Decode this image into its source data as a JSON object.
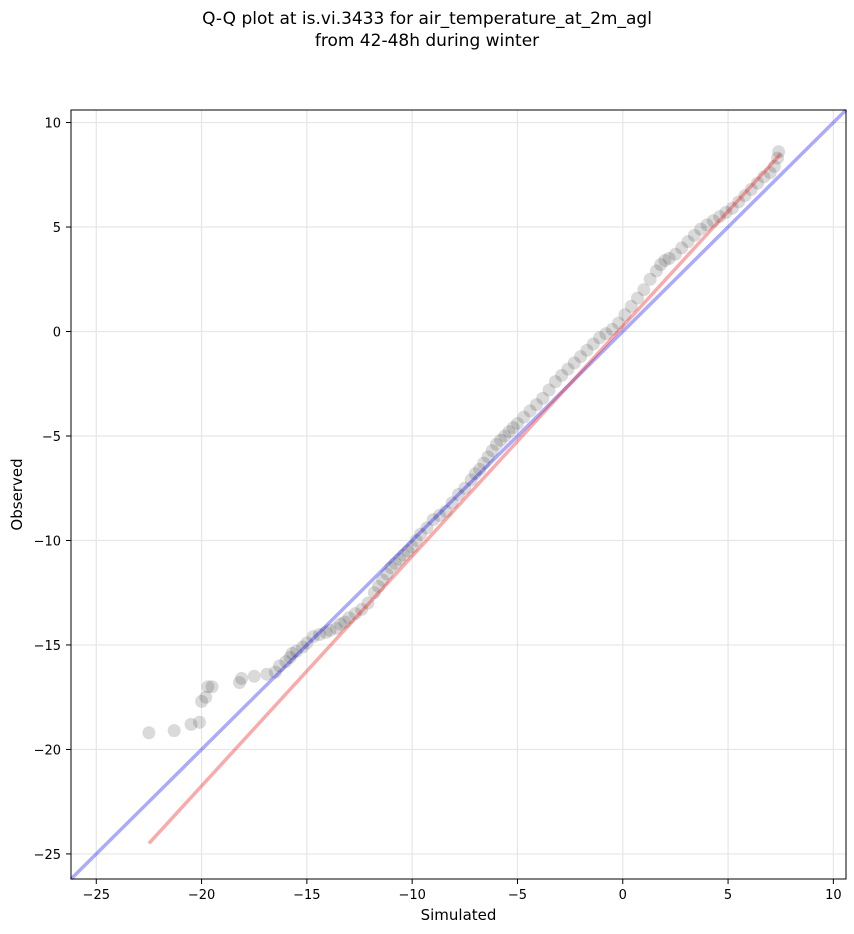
{
  "chart_data": {
    "type": "scatter",
    "title_lines": [
      "Q-Q plot at is.vi.3433 for air_temperature_at_2m_agl",
      "from 42-48h during winter"
    ],
    "xlabel": "Simulated",
    "ylabel": "Observed",
    "xlim": [
      -26.2,
      10.6
    ],
    "ylim": [
      -26.2,
      10.6
    ],
    "xticks": [
      -25,
      -20,
      -15,
      -10,
      -5,
      0,
      5,
      10
    ],
    "yticks": [
      -25,
      -20,
      -15,
      -10,
      -5,
      0,
      5,
      10
    ],
    "grid": true,
    "colors": {
      "points": "#333333",
      "identity_line": "#0000ee",
      "fit_line": "#ee2222",
      "grid": "#e6e6e6"
    },
    "identity_line": {
      "x": [
        -26.2,
        10.6
      ],
      "y": [
        -26.2,
        10.6
      ]
    },
    "fit_line": {
      "x": [
        -22.5,
        7.5
      ],
      "y": [
        -24.5,
        8.5
      ]
    },
    "points": {
      "x": [
        -22.5,
        -21.3,
        -20.5,
        -20.1,
        -20.0,
        -19.8,
        -19.7,
        -19.5,
        -18.2,
        -18.1,
        -17.5,
        -16.9,
        -16.5,
        -16.3,
        -16.0,
        -15.8,
        -15.7,
        -15.5,
        -15.2,
        -15.0,
        -14.7,
        -14.4,
        -14.1,
        -13.9,
        -13.6,
        -13.4,
        -13.2,
        -13.0,
        -12.7,
        -12.4,
        -12.1,
        -11.8,
        -11.6,
        -11.4,
        -11.2,
        -11.0,
        -10.8,
        -10.6,
        -10.4,
        -10.2,
        -10.0,
        -9.8,
        -9.6,
        -9.3,
        -9.0,
        -8.7,
        -8.4,
        -8.1,
        -7.8,
        -7.5,
        -7.2,
        -7.0,
        -6.8,
        -6.6,
        -6.4,
        -6.2,
        -6.0,
        -5.8,
        -5.6,
        -5.4,
        -5.2,
        -5.0,
        -4.7,
        -4.4,
        -4.1,
        -3.8,
        -3.5,
        -3.2,
        -2.9,
        -2.6,
        -2.3,
        -2.0,
        -1.7,
        -1.4,
        -1.1,
        -0.8,
        -0.5,
        -0.2,
        0.1,
        0.4,
        0.7,
        1.0,
        1.3,
        1.6,
        1.8,
        2.0,
        2.2,
        2.5,
        2.8,
        3.1,
        3.4,
        3.7,
        4.0,
        4.3,
        4.6,
        4.9,
        5.2,
        5.5,
        5.8,
        6.1,
        6.4,
        6.7,
        7.0,
        7.2,
        7.35,
        7.4
      ],
      "y": [
        -19.2,
        -19.1,
        -18.8,
        -18.7,
        -17.7,
        -17.5,
        -17.0,
        -17.0,
        -16.8,
        -16.6,
        -16.5,
        -16.4,
        -16.3,
        -16.0,
        -15.8,
        -15.6,
        -15.4,
        -15.3,
        -15.1,
        -14.9,
        -14.6,
        -14.5,
        -14.4,
        -14.3,
        -14.2,
        -14.0,
        -13.9,
        -13.7,
        -13.5,
        -13.3,
        -13.0,
        -12.5,
        -12.2,
        -11.9,
        -11.6,
        -11.3,
        -11.1,
        -10.9,
        -10.7,
        -10.5,
        -10.3,
        -10.0,
        -9.7,
        -9.4,
        -9.0,
        -8.8,
        -8.6,
        -8.2,
        -7.8,
        -7.5,
        -7.1,
        -6.8,
        -6.6,
        -6.3,
        -6.0,
        -5.7,
        -5.4,
        -5.2,
        -5.0,
        -4.8,
        -4.6,
        -4.4,
        -4.1,
        -3.8,
        -3.5,
        -3.2,
        -2.8,
        -2.4,
        -2.1,
        -1.8,
        -1.5,
        -1.2,
        -0.9,
        -0.6,
        -0.3,
        -0.1,
        0.1,
        0.4,
        0.8,
        1.2,
        1.6,
        2.0,
        2.5,
        2.9,
        3.2,
        3.4,
        3.5,
        3.7,
        4.0,
        4.3,
        4.6,
        4.9,
        5.1,
        5.3,
        5.5,
        5.7,
        5.9,
        6.2,
        6.5,
        6.8,
        7.1,
        7.4,
        7.6,
        7.9,
        8.3,
        8.6
      ]
    }
  }
}
